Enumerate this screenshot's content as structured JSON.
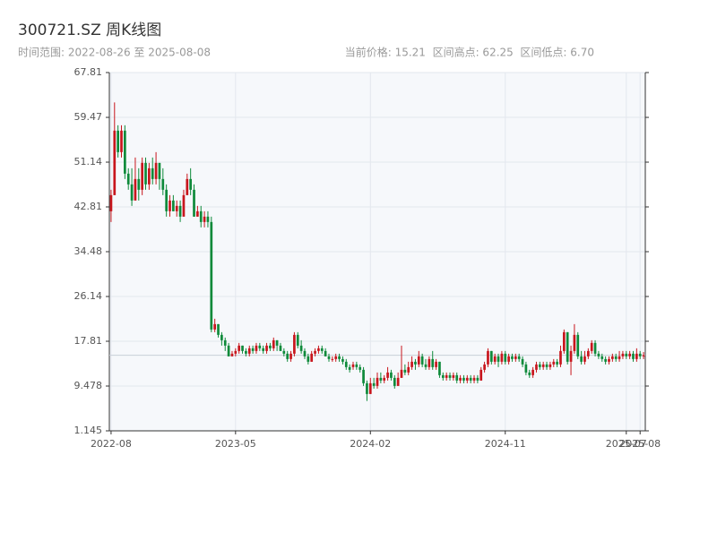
{
  "chart_data": {
    "type": "candlestick",
    "title": "300721.SZ 周K线图",
    "subtitle": "时间范围: 2022-08-26 至 2025-08-08",
    "stats": "当前价格: 15.21  区间高点: 62.25  区间低点: 6.70",
    "up_color": "#c8161d",
    "down_color": "#0e8a3a",
    "ylim": [
      1.145,
      67.81
    ],
    "yticks": [
      1.145,
      9.478,
      17.81,
      26.14,
      34.48,
      42.81,
      51.14,
      59.47,
      67.81
    ],
    "xticks": [
      "2022-08",
      "2023-05",
      "2024-02",
      "2024-11",
      "2025-07",
      "2025-08"
    ],
    "grid": true,
    "categories": [
      "2022-08",
      "2022-09",
      "2022-09",
      "2022-09",
      "2022-09",
      "2022-09",
      "2022-10",
      "2022-10",
      "2022-10",
      "2022-10",
      "2022-11",
      "2022-11",
      "2022-11",
      "2022-11",
      "2022-12",
      "2022-12",
      "2022-12",
      "2022-12",
      "2022-12",
      "2023-01",
      "2023-01",
      "2023-01",
      "2023-01",
      "2023-02",
      "2023-02",
      "2023-02",
      "2023-02",
      "2023-03",
      "2023-03",
      "2023-03",
      "2023-03",
      "2023-03",
      "2023-04",
      "2023-04",
      "2023-04",
      "2023-04",
      "2023-05",
      "2023-05",
      "2023-05",
      "2023-05",
      "2023-06",
      "2023-06",
      "2023-06",
      "2023-06",
      "2023-06",
      "2023-07",
      "2023-07",
      "2023-07",
      "2023-07",
      "2023-08",
      "2023-08",
      "2023-08",
      "2023-08",
      "2023-09",
      "2023-09",
      "2023-09",
      "2023-09",
      "2023-09",
      "2023-10",
      "2023-10",
      "2023-10",
      "2023-10",
      "2023-11",
      "2023-11",
      "2023-11",
      "2023-11",
      "2023-12",
      "2023-12",
      "2023-12",
      "2023-12",
      "2023-12",
      "2024-01",
      "2024-01",
      "2024-01",
      "2024-01",
      "2024-02",
      "2024-02",
      "2024-02",
      "2024-02",
      "2024-03",
      "2024-03",
      "2024-03",
      "2024-03",
      "2024-03",
      "2024-04",
      "2024-04",
      "2024-04",
      "2024-04",
      "2024-05",
      "2024-05",
      "2024-05",
      "2024-05",
      "2024-05",
      "2024-06",
      "2024-06",
      "2024-06",
      "2024-06",
      "2024-07",
      "2024-07",
      "2024-07",
      "2024-07",
      "2024-08",
      "2024-08",
      "2024-08",
      "2024-08",
      "2024-08",
      "2024-09",
      "2024-09",
      "2024-09",
      "2024-09",
      "2024-10",
      "2024-10",
      "2024-10",
      "2024-10",
      "2024-11",
      "2024-11",
      "2024-11",
      "2024-11",
      "2024-11",
      "2024-12",
      "2024-12",
      "2024-12",
      "2024-12",
      "2025-01",
      "2025-01",
      "2025-01",
      "2025-01",
      "2025-01",
      "2025-02",
      "2025-02",
      "2025-02",
      "2025-02",
      "2025-03",
      "2025-03",
      "2025-03",
      "2025-03",
      "2025-04",
      "2025-04",
      "2025-04",
      "2025-04",
      "2025-05",
      "2025-05",
      "2025-05",
      "2025-05",
      "2025-05",
      "2025-06",
      "2025-06",
      "2025-06",
      "2025-06",
      "2025-07",
      "2025-07",
      "2025-07",
      "2025-07",
      "2025-08",
      "2025-08"
    ],
    "values": [
      [
        42,
        45,
        40,
        46
      ],
      [
        45,
        57,
        45,
        62.25
      ],
      [
        57,
        53,
        52,
        58
      ],
      [
        53,
        57,
        52,
        58
      ],
      [
        57,
        49,
        48,
        58
      ],
      [
        49,
        47,
        46,
        50
      ],
      [
        47,
        44,
        43,
        50
      ],
      [
        44,
        48,
        44,
        52
      ],
      [
        48,
        46,
        44,
        50
      ],
      [
        46,
        51,
        45,
        52
      ],
      [
        51,
        47,
        46,
        52
      ],
      [
        47,
        50,
        46,
        51
      ],
      [
        50,
        48,
        47,
        52
      ],
      [
        48,
        51,
        47,
        53
      ],
      [
        51,
        48,
        46,
        51
      ],
      [
        48,
        46,
        45,
        50
      ],
      [
        46,
        42,
        41,
        47
      ],
      [
        42,
        44,
        41,
        45
      ],
      [
        44,
        42,
        42,
        45
      ],
      [
        42,
        43,
        41,
        44
      ],
      [
        43,
        41,
        40,
        44
      ],
      [
        41,
        45,
        41,
        46
      ],
      [
        45,
        48,
        45,
        49
      ],
      [
        48,
        46,
        45,
        50
      ],
      [
        46,
        41,
        41,
        47
      ],
      [
        41,
        42,
        41,
        43
      ],
      [
        42,
        40,
        39,
        43
      ],
      [
        40,
        41,
        39,
        42
      ],
      [
        41,
        40,
        39,
        42
      ],
      [
        40,
        20,
        19.5,
        41
      ],
      [
        20,
        21,
        19.5,
        22
      ],
      [
        21,
        19,
        18.5,
        21
      ],
      [
        19,
        18,
        17,
        19.5
      ],
      [
        18,
        17,
        16,
        18.5
      ],
      [
        17,
        15,
        15,
        17.5
      ],
      [
        15,
        15.5,
        15,
        16
      ],
      [
        15.5,
        16,
        15,
        16.5
      ],
      [
        16,
        17,
        15.5,
        17.5
      ],
      [
        17,
        16,
        15.5,
        17
      ],
      [
        16,
        15.5,
        15,
        16.5
      ],
      [
        15.5,
        16.5,
        15,
        17
      ],
      [
        16.5,
        16,
        15.5,
        17
      ],
      [
        16,
        17,
        15.5,
        17.5
      ],
      [
        17,
        16.5,
        16,
        17.5
      ],
      [
        16.5,
        16,
        15.5,
        17
      ],
      [
        16,
        17,
        15.5,
        17.5
      ],
      [
        17,
        16.5,
        16,
        17.5
      ],
      [
        16.5,
        18,
        16,
        18.5
      ],
      [
        18,
        17,
        16,
        18
      ],
      [
        17,
        16,
        16,
        17.5
      ],
      [
        16,
        15.5,
        15,
        16.5
      ],
      [
        15.5,
        14.5,
        14,
        16
      ],
      [
        14.5,
        15.5,
        14,
        16
      ],
      [
        15.5,
        19,
        15,
        19.5
      ],
      [
        19,
        17,
        16.5,
        19.5
      ],
      [
        17,
        16,
        15.5,
        18
      ],
      [
        16,
        15,
        14.5,
        16.5
      ],
      [
        15,
        14,
        13.5,
        15.5
      ],
      [
        14,
        15.5,
        14,
        16
      ],
      [
        15.5,
        16,
        15,
        16.5
      ],
      [
        16,
        16.5,
        15.5,
        17
      ],
      [
        16.5,
        16,
        15.5,
        17
      ],
      [
        16,
        15,
        15,
        16.5
      ],
      [
        15,
        14.5,
        14,
        15.5
      ],
      [
        14.5,
        14.5,
        14,
        15
      ],
      [
        14.5,
        15,
        14,
        15.5
      ],
      [
        15,
        14.5,
        14,
        15.5
      ],
      [
        14.5,
        14,
        13.5,
        15
      ],
      [
        14,
        13,
        12.5,
        14.5
      ],
      [
        13,
        12.5,
        12,
        13.5
      ],
      [
        13,
        13.5,
        12.5,
        14
      ],
      [
        13.5,
        13,
        12.5,
        14
      ],
      [
        13,
        12.5,
        12,
        13.5
      ],
      [
        12.5,
        10,
        9.5,
        13
      ],
      [
        10,
        8,
        6.7,
        10.5
      ],
      [
        8,
        10,
        8,
        11
      ],
      [
        10,
        9.5,
        9,
        11
      ],
      [
        9.5,
        11,
        9,
        12
      ],
      [
        11,
        10.5,
        10,
        12
      ],
      [
        10.5,
        11,
        10,
        11.5
      ],
      [
        11,
        12,
        10.5,
        13
      ],
      [
        12,
        11,
        10.5,
        12.5
      ],
      [
        11,
        9.5,
        9,
        11.5
      ],
      [
        9.5,
        11,
        9.5,
        12
      ],
      [
        11,
        12.5,
        11,
        17
      ],
      [
        12.5,
        12,
        11.5,
        13.5
      ],
      [
        12,
        13,
        11.5,
        14
      ],
      [
        13,
        14,
        12.5,
        15
      ],
      [
        14,
        13.5,
        12.5,
        14.5
      ],
      [
        13.5,
        15,
        13,
        16
      ],
      [
        15,
        13.5,
        13,
        15.5
      ],
      [
        13.5,
        13,
        12.5,
        14.5
      ],
      [
        13,
        14.5,
        12.5,
        15
      ],
      [
        14.5,
        13,
        12.5,
        16
      ],
      [
        13,
        14,
        12.5,
        14.5
      ],
      [
        14,
        11.5,
        11,
        14
      ],
      [
        11.5,
        11,
        10.5,
        12
      ],
      [
        11,
        11.5,
        10.5,
        12
      ],
      [
        11.5,
        11,
        10.5,
        12
      ],
      [
        11,
        11.5,
        10.5,
        12
      ],
      [
        11.5,
        10.5,
        10,
        12
      ],
      [
        10.5,
        11,
        10,
        11.5
      ],
      [
        11,
        10.5,
        10,
        11.5
      ],
      [
        10.5,
        11,
        10,
        11.5
      ],
      [
        11,
        10.5,
        10,
        11.5
      ],
      [
        10.5,
        11,
        10,
        11.5
      ],
      [
        11,
        10.5,
        10,
        11.5
      ],
      [
        10.5,
        12.5,
        10.5,
        13
      ],
      [
        12.5,
        13.5,
        12,
        14
      ],
      [
        13.5,
        16,
        13,
        16.5
      ],
      [
        16,
        14,
        13.5,
        16
      ],
      [
        14,
        15,
        13.5,
        15.5
      ],
      [
        15,
        14,
        13,
        15.5
      ],
      [
        14,
        15.5,
        13.5,
        16
      ],
      [
        15.5,
        14,
        13.5,
        16
      ],
      [
        14,
        15,
        13.5,
        15.5
      ],
      [
        15,
        14.5,
        14,
        15.5
      ],
      [
        14.5,
        15,
        14,
        15.5
      ],
      [
        15,
        14.5,
        14,
        15.5
      ],
      [
        14.5,
        13.5,
        13,
        15
      ],
      [
        13.5,
        12,
        11.5,
        14
      ],
      [
        12,
        11.5,
        11,
        12.5
      ],
      [
        11.5,
        12.5,
        11,
        13
      ],
      [
        12.5,
        13.5,
        12,
        14
      ],
      [
        13.5,
        13,
        12.5,
        14
      ],
      [
        13,
        13.5,
        12.5,
        14
      ],
      [
        13.5,
        13,
        12.5,
        14
      ],
      [
        13,
        13.5,
        12.5,
        14
      ],
      [
        13.5,
        14,
        13,
        14.5
      ],
      [
        14,
        13.5,
        13,
        14.5
      ],
      [
        13.5,
        16,
        13,
        17
      ],
      [
        16,
        19.5,
        15.5,
        20
      ],
      [
        19.5,
        14,
        13.5,
        19.5
      ],
      [
        14,
        16,
        11.5,
        17
      ],
      [
        16,
        19,
        15.5,
        21
      ],
      [
        19,
        15,
        14.5,
        19.5
      ],
      [
        15,
        14,
        13.5,
        16
      ],
      [
        14,
        15,
        13.5,
        16
      ],
      [
        15,
        16,
        14.5,
        16.5
      ],
      [
        16,
        17.5,
        15.5,
        18
      ],
      [
        17.5,
        15.5,
        15,
        18
      ],
      [
        15.5,
        15,
        14.5,
        16
      ],
      [
        15,
        14.5,
        14,
        15.5
      ],
      [
        14.5,
        14,
        13.5,
        15
      ],
      [
        14,
        14.5,
        13.5,
        15
      ],
      [
        14.5,
        15,
        14,
        15.5
      ],
      [
        15,
        14.5,
        14,
        15.5
      ],
      [
        14.5,
        15,
        14,
        16
      ],
      [
        15,
        15.5,
        14.5,
        16
      ],
      [
        15.5,
        15,
        14.5,
        16
      ],
      [
        15,
        15.5,
        14.5,
        16
      ],
      [
        15.5,
        14.5,
        14,
        16
      ],
      [
        14.5,
        15.5,
        14,
        16.5
      ],
      [
        15.5,
        15,
        14.5,
        16
      ],
      [
        15,
        15.21,
        14.5,
        15.8
      ]
    ]
  }
}
